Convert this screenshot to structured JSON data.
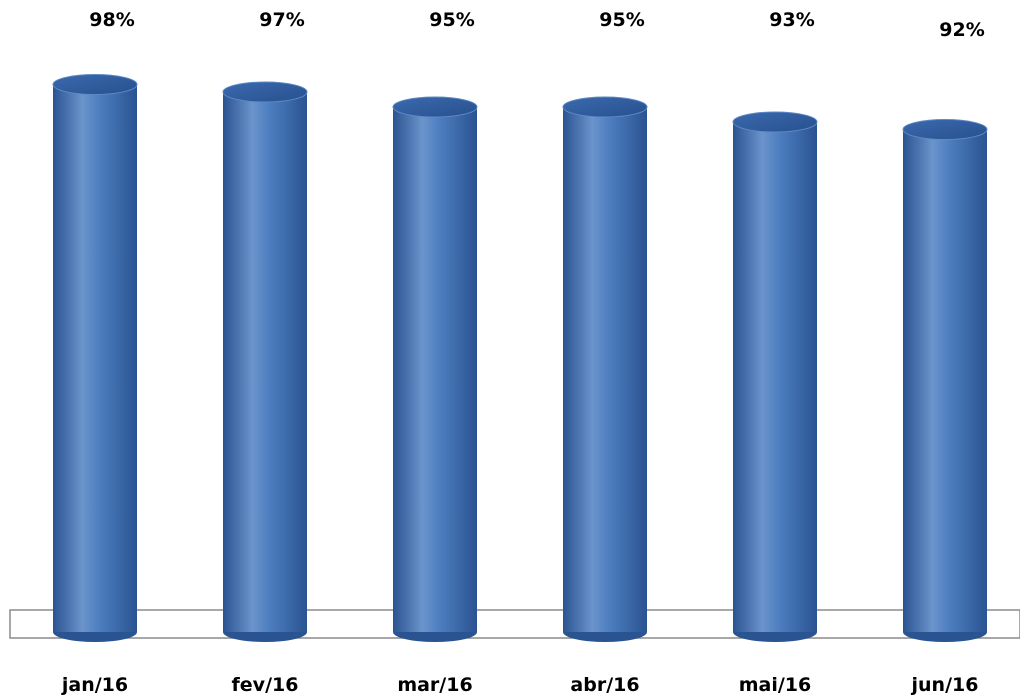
{
  "chart_data": {
    "type": "bar",
    "subtype": "3d-cylinder",
    "categories": [
      "jan/16",
      "fev/16",
      "mar/16",
      "abr/16",
      "mai/16",
      "jun/16"
    ],
    "values": [
      98,
      97,
      95,
      95,
      93,
      92
    ],
    "value_labels": [
      "98%",
      "97%",
      "95%",
      "95%",
      "93%",
      "92%"
    ],
    "value_unit": "%",
    "ylim": [
      0,
      100
    ],
    "title": "",
    "xlabel": "",
    "ylabel": "",
    "grid": false,
    "legend": "none",
    "colors": {
      "bar_light": "#6b94cc",
      "bar_mid": "#3f6fb3",
      "bar_dark": "#2a5391",
      "bar_top": "#2f5d9e",
      "floor_stroke": "#8c8c8c"
    }
  }
}
